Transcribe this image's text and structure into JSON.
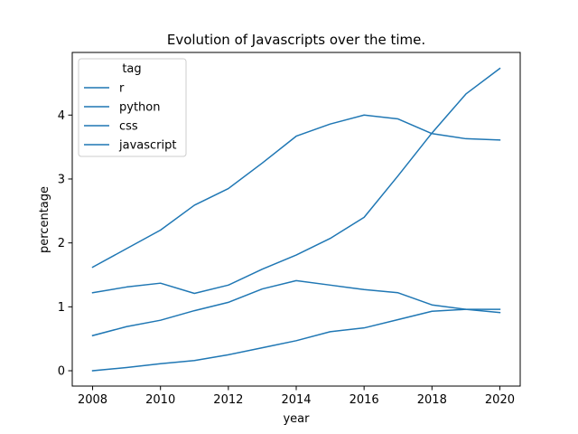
{
  "chart_data": {
    "type": "line",
    "title": "Evolution of Javascripts over the time.",
    "xlabel": "year",
    "ylabel": "percentage",
    "xlim": [
      2007.4,
      2020.6
    ],
    "ylim": [
      -0.24,
      4.98
    ],
    "xticks": [
      2008,
      2010,
      2012,
      2014,
      2016,
      2018,
      2020
    ],
    "yticks": [
      0,
      1,
      2,
      3,
      4
    ],
    "grid": false,
    "legend": {
      "title": "tag",
      "placement": "top-left"
    },
    "line_color": "#1f77b4",
    "x": [
      2008,
      2009,
      2010,
      2011,
      2012,
      2013,
      2014,
      2015,
      2016,
      2017,
      2018,
      2019,
      2020
    ],
    "series": [
      {
        "name": "r",
        "values": [
          0.0,
          0.05,
          0.11,
          0.16,
          0.25,
          0.36,
          0.47,
          0.61,
          0.67,
          0.8,
          0.93,
          0.96,
          0.96
        ]
      },
      {
        "name": "python",
        "values": [
          0.55,
          0.69,
          0.79,
          0.94,
          1.07,
          1.28,
          1.41,
          1.34,
          1.27,
          1.22,
          1.03,
          0.96,
          0.91
        ]
      },
      {
        "name": "css",
        "values": [
          1.22,
          1.31,
          1.37,
          1.21,
          1.34,
          1.59,
          1.81,
          2.07,
          2.4,
          3.05,
          3.72,
          4.33,
          4.73
        ]
      },
      {
        "name": "javascript",
        "values": [
          1.62,
          1.91,
          2.2,
          2.59,
          2.85,
          3.25,
          3.67,
          3.86,
          4.0,
          3.94,
          3.71,
          3.63,
          3.61
        ]
      }
    ]
  }
}
